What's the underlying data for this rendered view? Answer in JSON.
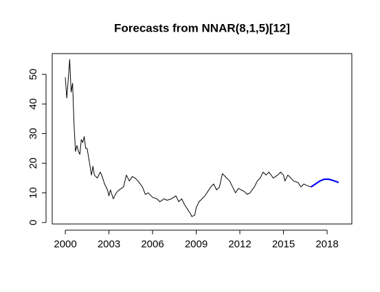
{
  "chart_data": {
    "type": "line",
    "title": "Forecasts from NNAR(8,1,5)[12]",
    "xlim": [
      1999.1,
      2019.7
    ],
    "ylim": [
      -0.5,
      57
    ],
    "xticks": [
      2000,
      2003,
      2006,
      2009,
      2012,
      2015,
      2018
    ],
    "yticks": [
      0,
      10,
      20,
      30,
      40,
      50
    ],
    "series": [
      {
        "color": "#000000",
        "x": [
          2000.0,
          2000.1,
          2000.2,
          2000.3,
          2000.4,
          2000.5,
          2000.6,
          2000.7,
          2000.8,
          2000.9,
          2001.0,
          2001.1,
          2001.2,
          2001.3,
          2001.4,
          2001.5,
          2001.6,
          2001.7,
          2001.8,
          2001.9,
          2002.0,
          2002.2,
          2002.4,
          2002.5,
          2002.7,
          2002.9,
          2003.0,
          2003.1,
          2003.3,
          2003.5,
          2003.7,
          2004.0,
          2004.2,
          2004.4,
          2004.6,
          2004.8,
          2005.0,
          2005.3,
          2005.5,
          2005.7,
          2006.0,
          2006.3,
          2006.5,
          2006.8,
          2007.0,
          2007.3,
          2007.6,
          2007.8,
          2008.0,
          2008.2,
          2008.4,
          2008.6,
          2008.7,
          2008.9,
          2009.0,
          2009.2,
          2009.4,
          2009.6,
          2009.8,
          2010.0,
          2010.2,
          2010.4,
          2010.6,
          2010.8,
          2011.0,
          2011.3,
          2011.5,
          2011.7,
          2011.9,
          2012.1,
          2012.3,
          2012.5,
          2012.7,
          2013.0,
          2013.2,
          2013.4,
          2013.6,
          2013.8,
          2014.0,
          2014.3,
          2014.6,
          2014.8,
          2015.0,
          2015.1,
          2015.3,
          2015.5,
          2015.7,
          2016.0,
          2016.2,
          2016.4,
          2016.6,
          2016.9
        ],
        "values": [
          49,
          42,
          48,
          55,
          44,
          47,
          33,
          24,
          26,
          24,
          23,
          28,
          27,
          29,
          25,
          25,
          22,
          19,
          16,
          19,
          16,
          15,
          17,
          16,
          13,
          11,
          9,
          11,
          8,
          10,
          11,
          12,
          16,
          14,
          15.5,
          15,
          14,
          12,
          9.5,
          10,
          8.5,
          8,
          7,
          8,
          7.5,
          8,
          9,
          7,
          8,
          6,
          4.5,
          3,
          2,
          2.5,
          5,
          7,
          8,
          9,
          10.5,
          12,
          13,
          11,
          12,
          16.5,
          15.5,
          14,
          12,
          10,
          11.5,
          11,
          10.5,
          9.5,
          10,
          12,
          14,
          15,
          17,
          16,
          17,
          15,
          16,
          17,
          16,
          14,
          16,
          15,
          14,
          13.5,
          12,
          13,
          12.5,
          12
        ]
      },
      {
        "color": "#0000ff",
        "x": [
          2016.9,
          2017.2,
          2017.5,
          2017.8,
          2018.1,
          2018.4,
          2018.8
        ],
        "values": [
          12,
          13,
          14,
          14.6,
          14.6,
          14.2,
          13.5
        ]
      }
    ]
  }
}
